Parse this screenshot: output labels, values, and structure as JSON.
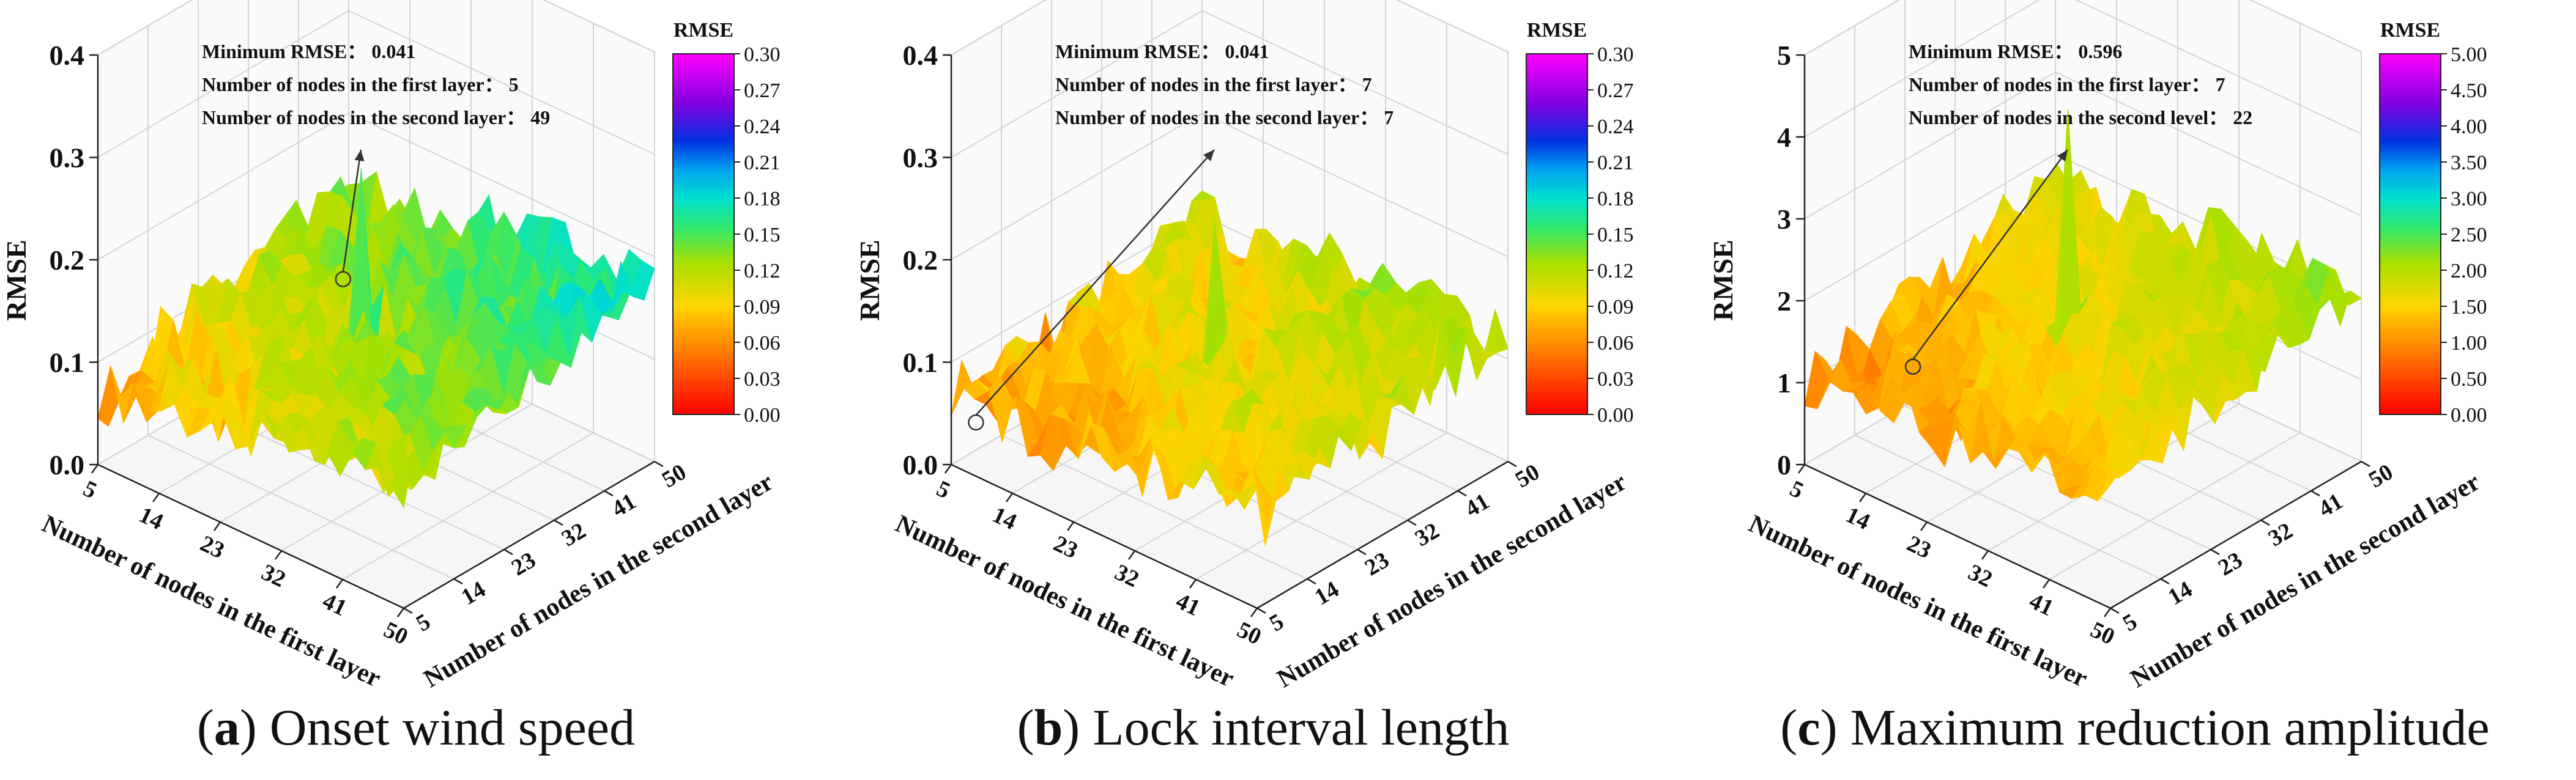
{
  "chart_data": [
    {
      "type": "surface3d",
      "panel_label": "a",
      "caption": "Onset wind speed",
      "zlabel": "RMSE",
      "xlabel": "Number of nodes in the first layer",
      "ylabel": "Number of nodes in the second layer",
      "x_ticks": [
        "5",
        "14",
        "23",
        "32",
        "41",
        "50"
      ],
      "y_ticks": [
        "5",
        "14",
        "23",
        "32",
        "41",
        "50"
      ],
      "z_ticks": [
        "0.0",
        "0.1",
        "0.2",
        "0.3",
        "0.4"
      ],
      "zlim": [
        0,
        0.4
      ],
      "xlim": [
        5,
        50
      ],
      "ylim": [
        5,
        50
      ],
      "colorbar": {
        "title": "RMSE",
        "ticks": [
          "0.30",
          "0.27",
          "0.24",
          "0.21",
          "0.18",
          "0.15",
          "0.12",
          "0.09",
          "0.06",
          "0.03",
          "0.00"
        ],
        "range": [
          0,
          0.3
        ]
      },
      "annotation": {
        "lines": [
          {
            "label": "Minimum RMSE：",
            "value": "0.041"
          },
          {
            "label": "Number of nodes in the first layer：",
            "value": "5"
          },
          {
            "label": "Number of nodes in the second layer：",
            "value": "49"
          }
        ]
      },
      "surface": {
        "base": 0.075,
        "x_trend": 0.045,
        "y_trend": 0.06,
        "noise": 0.03,
        "spike": 0.27
      },
      "minimum": {
        "x": 5,
        "y": 49,
        "z": 0.041
      }
    },
    {
      "type": "surface3d",
      "panel_label": "b",
      "caption": "Lock interval length",
      "zlabel": "RMSE",
      "xlabel": "Number of nodes in the first layer",
      "ylabel": "Number of nodes in the second layer",
      "x_ticks": [
        "5",
        "14",
        "23",
        "32",
        "41",
        "50"
      ],
      "y_ticks": [
        "5",
        "14",
        "23",
        "32",
        "41",
        "50"
      ],
      "z_ticks": [
        "0.0",
        "0.1",
        "0.2",
        "0.3",
        "0.4"
      ],
      "zlim": [
        0,
        0.4
      ],
      "xlim": [
        5,
        50
      ],
      "ylim": [
        5,
        50
      ],
      "colorbar": {
        "title": "RMSE",
        "ticks": [
          "0.30",
          "0.27",
          "0.24",
          "0.21",
          "0.18",
          "0.15",
          "0.12",
          "0.09",
          "0.06",
          "0.03",
          "0.00"
        ],
        "range": [
          0,
          0.3
        ]
      },
      "annotation": {
        "lines": [
          {
            "label": "Minimum RMSE：",
            "value": "0.041"
          },
          {
            "label": "Number of nodes in the first layer：",
            "value": "7"
          },
          {
            "label": "Number of nodes in the second layer：",
            "value": "7"
          }
        ]
      },
      "surface": {
        "base": 0.065,
        "x_trend": 0.03,
        "y_trend": 0.035,
        "noise": 0.03,
        "spike": 0.22
      },
      "minimum": {
        "x": 7,
        "y": 7,
        "z": 0.041
      }
    },
    {
      "type": "surface3d",
      "panel_label": "c",
      "caption": "Maximum reduction amplitude",
      "zlabel": "RMSE",
      "xlabel": "Number of nodes in the first layer",
      "ylabel": "Number of nodes in the second layer",
      "x_ticks": [
        "5",
        "14",
        "23",
        "32",
        "41",
        "50"
      ],
      "y_ticks": [
        "5",
        "14",
        "23",
        "32",
        "41",
        "50"
      ],
      "z_ticks": [
        "0",
        "1",
        "2",
        "3",
        "4",
        "5"
      ],
      "zlim": [
        0,
        5
      ],
      "xlim": [
        5,
        50
      ],
      "ylim": [
        5,
        50
      ],
      "colorbar": {
        "title": "RMSE",
        "ticks": [
          "5.00",
          "4.50",
          "4.00",
          "3.50",
          "3.00",
          "2.50",
          "2.00",
          "1.50",
          "1.00",
          "0.50",
          "0.00"
        ],
        "range": [
          0,
          5
        ]
      },
      "annotation": {
        "lines": [
          {
            "label": "Minimum RMSE：",
            "value": "0.596"
          },
          {
            "label": "Number of nodes in the first layer：",
            "value": "7"
          },
          {
            "label": "Number of nodes in the second level：",
            "value": "22"
          }
        ]
      },
      "surface": {
        "base": 1.0,
        "x_trend": 0.5,
        "y_trend": 0.7,
        "noise": 0.35,
        "spike": 4.1
      },
      "minimum": {
        "x": 7,
        "y": 22,
        "z": 0.596
      }
    }
  ]
}
